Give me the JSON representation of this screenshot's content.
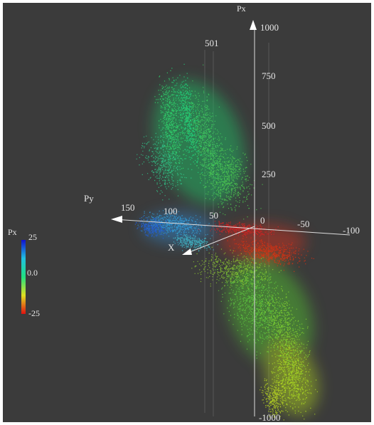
{
  "vertical_axis": {
    "label": "Px",
    "ticks": [
      "1000",
      "750",
      "500",
      "250",
      "-1000"
    ]
  },
  "depth_label": "501",
  "horizontal_axis": {
    "label": "Py",
    "ticks": [
      "150",
      "100",
      "50",
      "0",
      "-50",
      "-100"
    ]
  },
  "x_axis": {
    "label": "X"
  },
  "colorbar": {
    "title": "Px",
    "ticks": [
      "25",
      "0.0",
      "-25"
    ]
  }
}
